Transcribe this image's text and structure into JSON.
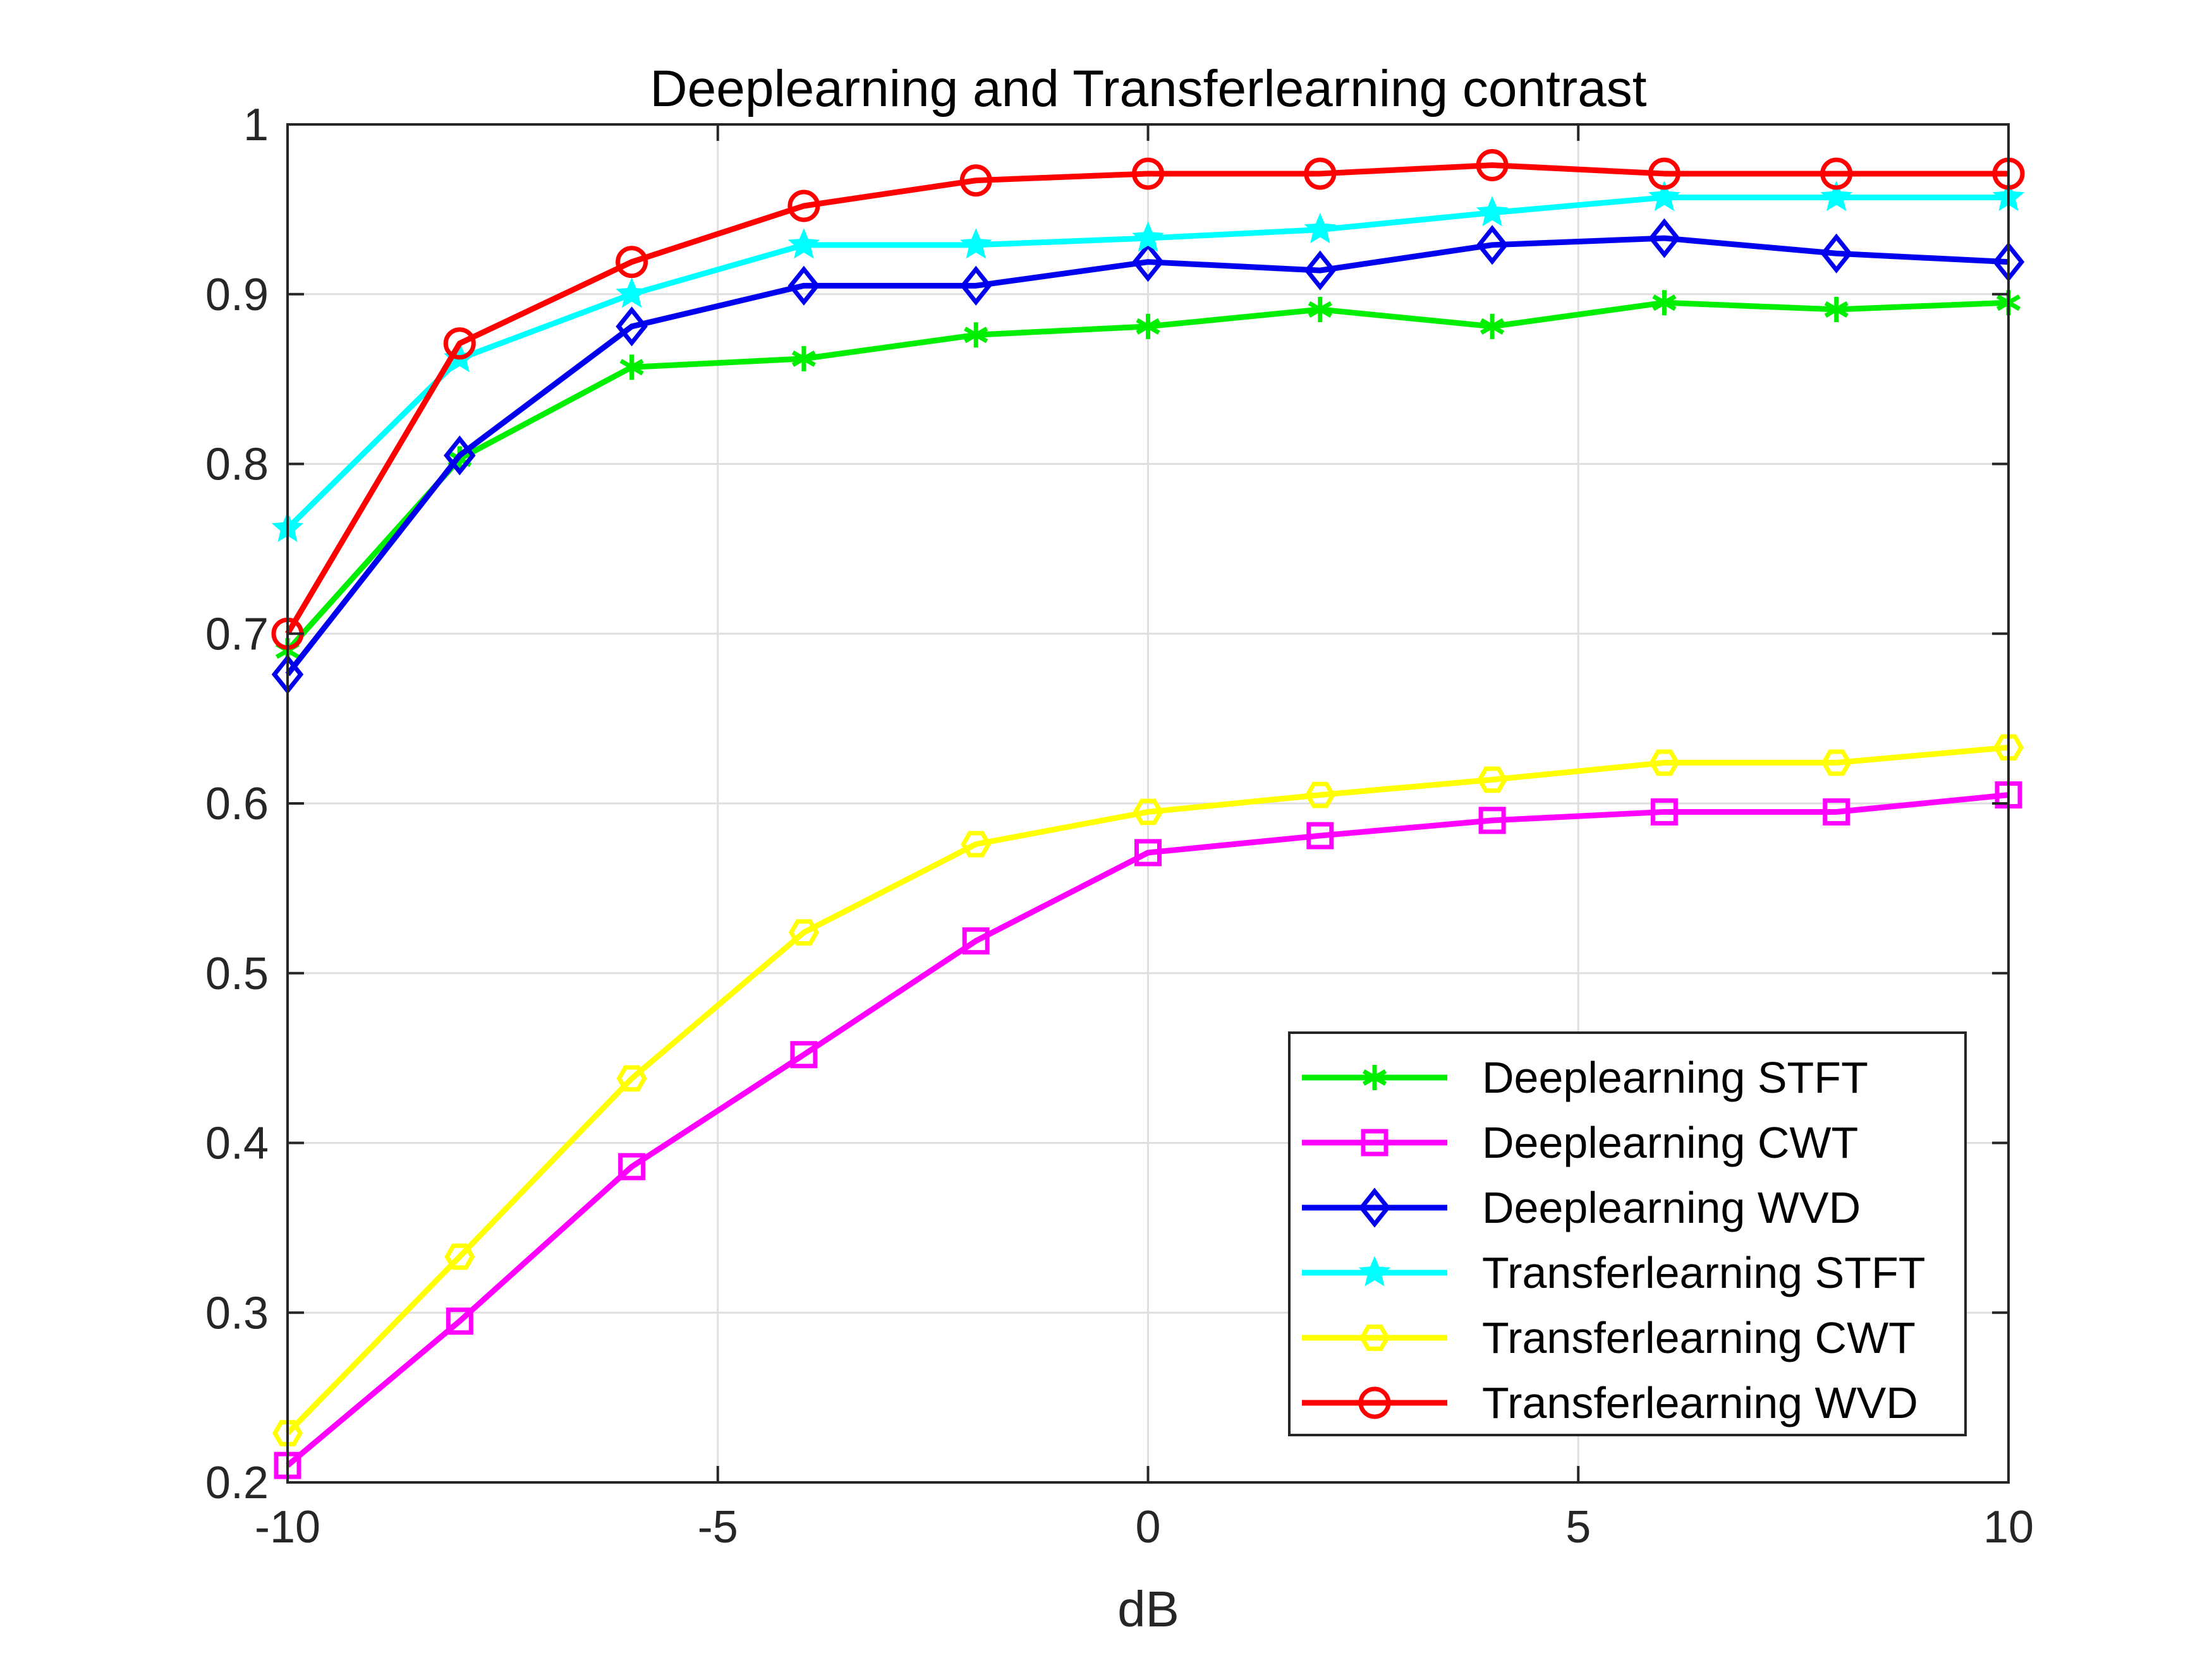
{
  "chart_data": {
    "type": "line",
    "title": "Deeplearning and Transferlearning contrast",
    "xlabel": "dB",
    "ylabel": "",
    "xlim": [
      -10,
      10
    ],
    "ylim": [
      0.2,
      1
    ],
    "xticks": [
      -10,
      -5,
      0,
      5,
      10
    ],
    "xtick_labels": [
      "-10",
      "-5",
      "0",
      "5",
      "10"
    ],
    "yticks": [
      0.2,
      0.3,
      0.4,
      0.5,
      0.6,
      0.7,
      0.8,
      0.9,
      1
    ],
    "ytick_labels": [
      "0.2",
      "0.3",
      "0.4",
      "0.5",
      "0.6",
      "0.7",
      "0.8",
      "0.9",
      "1"
    ],
    "grid": true,
    "legend_position": "bottom-right",
    "x": [
      -10,
      -8,
      -6,
      -4,
      -2,
      0,
      2,
      4,
      6,
      8,
      10
    ],
    "series": [
      {
        "name": "Deeplearning STFT",
        "color": "#00ee00",
        "marker": "asterisk",
        "values": [
          0.69,
          0.803,
          0.857,
          0.862,
          0.876,
          0.881,
          0.891,
          0.881,
          0.895,
          0.891,
          0.895
        ]
      },
      {
        "name": "Deeplearning CWT",
        "color": "#ff00ff",
        "marker": "square",
        "values": [
          0.21,
          0.295,
          0.386,
          0.452,
          0.519,
          0.571,
          0.581,
          0.59,
          0.595,
          0.595,
          0.605
        ]
      },
      {
        "name": "Deeplearning WVD",
        "color": "#0000ee",
        "marker": "diamond",
        "values": [
          0.676,
          0.805,
          0.881,
          0.905,
          0.905,
          0.919,
          0.914,
          0.929,
          0.933,
          0.924,
          0.919
        ]
      },
      {
        "name": "Transferlearning STFT",
        "color": "#00ffff",
        "marker": "star",
        "values": [
          0.762,
          0.862,
          0.9,
          0.929,
          0.929,
          0.933,
          0.938,
          0.948,
          0.957,
          0.957,
          0.957
        ]
      },
      {
        "name": "Transferlearning CWT",
        "color": "#ffff00",
        "marker": "hexagon",
        "values": [
          0.229,
          0.333,
          0.438,
          0.524,
          0.576,
          0.595,
          0.605,
          0.614,
          0.624,
          0.624,
          0.633
        ]
      },
      {
        "name": "Transferlearning WVD",
        "color": "#ff0000",
        "marker": "circle",
        "values": [
          0.7,
          0.871,
          0.919,
          0.952,
          0.967,
          0.971,
          0.971,
          0.976,
          0.971,
          0.971,
          0.971
        ]
      }
    ]
  }
}
